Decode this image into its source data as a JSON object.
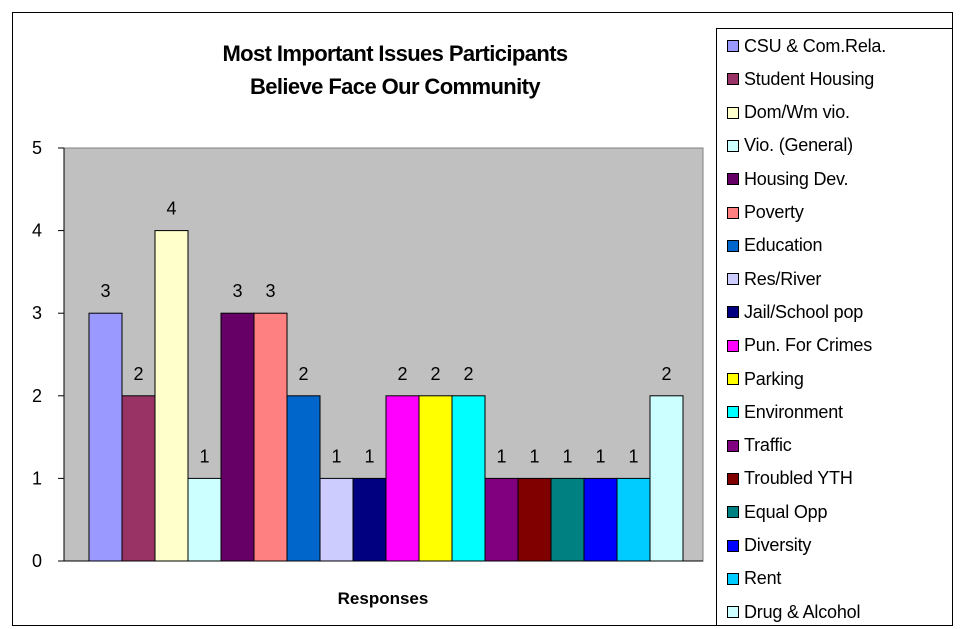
{
  "chart_data": {
    "type": "bar",
    "title": "Most Important Issues Participants\nBelieve Face Our Community",
    "xlabel": "Responses",
    "ylabel": "",
    "ylim": [
      0,
      5
    ],
    "yticks": [
      "0",
      "1",
      "2",
      "3",
      "4",
      "5"
    ],
    "grid": false,
    "plot_background": "#C0C0C0",
    "legend_position": "right",
    "series": [
      {
        "name": "CSU & Com.Rela.",
        "value": 3,
        "color": "#9999FF"
      },
      {
        "name": "Student Housing",
        "value": 2,
        "color": "#993366"
      },
      {
        "name": "Dom/Wm vio.",
        "value": 4,
        "color": "#FFFFCC"
      },
      {
        "name": "Vio. (General)",
        "value": 1,
        "color": "#CCFFFF"
      },
      {
        "name": "Housing Dev.",
        "value": 3,
        "color": "#660066"
      },
      {
        "name": "Poverty",
        "value": 3,
        "color": "#FF8080"
      },
      {
        "name": "Education",
        "value": 2,
        "color": "#0066CC"
      },
      {
        "name": "Res/River",
        "value": 1,
        "color": "#CCCCFF"
      },
      {
        "name": "Jail/School pop",
        "value": 1,
        "color": "#000080"
      },
      {
        "name": "Pun. For Crimes",
        "value": 2,
        "color": "#FF00FF"
      },
      {
        "name": "Parking",
        "value": 2,
        "color": "#FFFF00"
      },
      {
        "name": "Environment",
        "value": 2,
        "color": "#00FFFF"
      },
      {
        "name": "Traffic",
        "value": 1,
        "color": "#800080"
      },
      {
        "name": "Troubled YTH",
        "value": 1,
        "color": "#800000"
      },
      {
        "name": "Equal Opp",
        "value": 1,
        "color": "#008080"
      },
      {
        "name": "Diversity",
        "value": 1,
        "color": "#0000FF"
      },
      {
        "name": "Rent",
        "value": 1,
        "color": "#00CCFF"
      },
      {
        "name": "Drug & Alcohol",
        "value": 2,
        "color": "#CCFFFF"
      }
    ]
  }
}
